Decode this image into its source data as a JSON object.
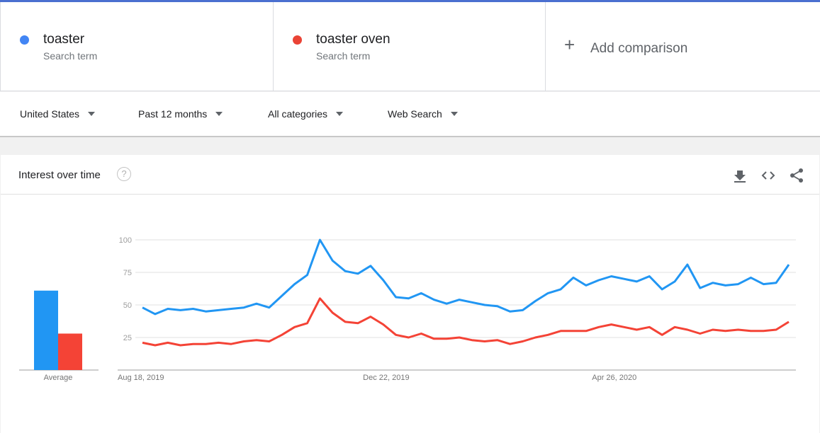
{
  "terms": [
    {
      "name": "toaster",
      "sub": "Search term",
      "color": "#4285f4"
    },
    {
      "name": "toaster oven",
      "sub": "Search term",
      "color": "#ea4335"
    }
  ],
  "add_comparison": "Add comparison",
  "filters": {
    "region": "United States",
    "time": "Past 12 months",
    "category": "All categories",
    "search_type": "Web Search"
  },
  "card": {
    "title": "Interest over time",
    "icons": [
      "help-icon",
      "download-icon",
      "embed-icon",
      "share-icon"
    ]
  },
  "chart_data": {
    "type": "line",
    "yticks": [
      25,
      50,
      75,
      100
    ],
    "ylim": [
      0,
      100
    ],
    "x_labels": [
      "Aug 18, 2019",
      "Dec 22, 2019",
      "Apr 26, 2020"
    ],
    "x_label_index": [
      0,
      18,
      36
    ],
    "average_label": "Average",
    "series": [
      {
        "name": "toaster",
        "color": "#2196f3",
        "average": 61,
        "values": [
          48,
          43,
          47,
          46,
          47,
          45,
          46,
          47,
          48,
          51,
          48,
          57,
          66,
          73,
          100,
          84,
          76,
          74,
          80,
          69,
          56,
          55,
          59,
          54,
          51,
          54,
          52,
          50,
          49,
          45,
          46,
          53,
          59,
          62,
          71,
          65,
          69,
          72,
          70,
          68,
          72,
          62,
          68,
          81,
          63,
          67,
          65,
          66,
          71,
          66,
          67,
          81
        ]
      },
      {
        "name": "toaster oven",
        "color": "#f44336",
        "average": 28,
        "values": [
          21,
          19,
          21,
          19,
          20,
          20,
          21,
          20,
          22,
          23,
          22,
          27,
          33,
          36,
          55,
          44,
          37,
          36,
          41,
          35,
          27,
          25,
          28,
          24,
          24,
          25,
          23,
          22,
          23,
          20,
          22,
          25,
          27,
          30,
          30,
          30,
          33,
          35,
          33,
          31,
          33,
          27,
          33,
          31,
          28,
          31,
          30,
          31,
          30,
          30,
          31,
          37
        ]
      }
    ]
  }
}
